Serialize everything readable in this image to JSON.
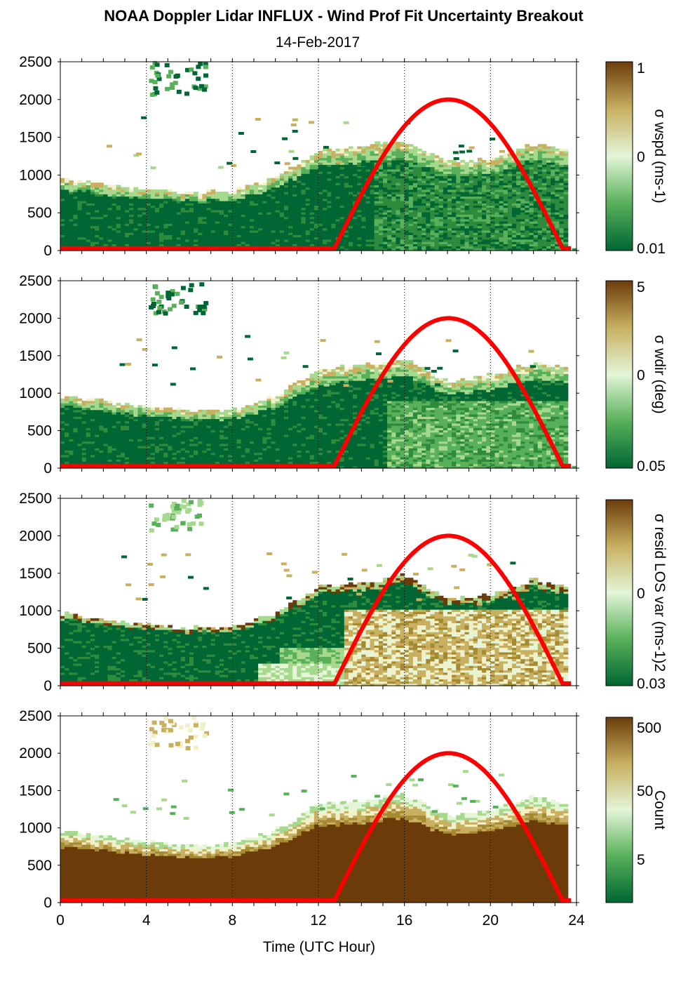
{
  "title": "NOAA Doppler Lidar INFLUX - Wind Prof Fit Uncertainty Breakout",
  "subtitle": "14-Feb-2017",
  "chart_data": [
    {
      "type": "heatmap",
      "panel": "sigma_wspd",
      "xlim": [
        0,
        24
      ],
      "ylim": [
        0,
        2500
      ],
      "x_ticks": [
        "0",
        "4",
        "8",
        "12",
        "16",
        "20",
        "24"
      ],
      "y_ticks": [
        "0",
        "500",
        "1000",
        "1500",
        "2000",
        "2500"
      ],
      "colorbar": {
        "label": "σ wspd (ms-1)",
        "ticks": [
          "1",
          "0",
          "0.01"
        ],
        "scale": "log",
        "range": [
          0.01,
          1
        ]
      },
      "max_height_profile": {
        "x": [
          0,
          2,
          4,
          6,
          8,
          10,
          12,
          14,
          16,
          18,
          20,
          22,
          23.6
        ],
        "y": [
          950,
          880,
          800,
          760,
          770,
          950,
          1300,
          1350,
          1450,
          1150,
          1200,
          1400,
          1300
        ]
      }
    },
    {
      "type": "heatmap",
      "panel": "sigma_wdir",
      "xlim": [
        0,
        24
      ],
      "ylim": [
        0,
        2500
      ],
      "x_ticks": [
        "0",
        "4",
        "8",
        "12",
        "16",
        "20",
        "24"
      ],
      "y_ticks": [
        "0",
        "500",
        "1000",
        "1500",
        "2000",
        "2500"
      ],
      "colorbar": {
        "label": "σ wdir (deg)",
        "ticks": [
          "5",
          "0",
          "0.05"
        ],
        "scale": "log",
        "range": [
          0.05,
          5
        ]
      },
      "max_height_profile": {
        "x": [
          0,
          2,
          4,
          6,
          8,
          10,
          12,
          14,
          16,
          18,
          20,
          22,
          23.6
        ],
        "y": [
          950,
          880,
          800,
          760,
          770,
          950,
          1300,
          1350,
          1450,
          1150,
          1200,
          1400,
          1300
        ]
      }
    },
    {
      "type": "heatmap",
      "panel": "sigma_resid_los_var",
      "xlim": [
        0,
        24
      ],
      "ylim": [
        0,
        2500
      ],
      "x_ticks": [
        "0",
        "4",
        "8",
        "12",
        "16",
        "20",
        "24"
      ],
      "y_ticks": [
        "0",
        "500",
        "1000",
        "1500",
        "2000",
        "2500"
      ],
      "colorbar": {
        "label": "σ resid LOS var (ms-1)2",
        "ticks": [
          "0",
          "0.03"
        ],
        "scale": "log"
      },
      "max_height_profile": {
        "x": [
          0,
          2,
          4,
          6,
          8,
          10,
          12,
          14,
          16,
          18,
          20,
          22,
          23.6
        ],
        "y": [
          950,
          880,
          800,
          760,
          770,
          950,
          1300,
          1350,
          1450,
          1150,
          1200,
          1400,
          1300
        ]
      }
    },
    {
      "type": "heatmap",
      "panel": "count",
      "xlim": [
        0,
        24
      ],
      "ylim": [
        0,
        2500
      ],
      "x_ticks": [
        "0",
        "4",
        "8",
        "12",
        "16",
        "20",
        "24"
      ],
      "y_ticks": [
        "0",
        "500",
        "1000",
        "1500",
        "2000",
        "2500"
      ],
      "xlabel": "Time (UTC Hour)",
      "colorbar": {
        "label": "Count",
        "ticks": [
          "500",
          "50",
          "5"
        ],
        "scale": "log",
        "range": [
          1,
          500
        ]
      },
      "max_height_profile": {
        "x": [
          0,
          2,
          4,
          6,
          8,
          10,
          12,
          14,
          16,
          18,
          20,
          22,
          23.6
        ],
        "y": [
          950,
          880,
          800,
          760,
          770,
          950,
          1300,
          1350,
          1450,
          1150,
          1200,
          1400,
          1300
        ]
      }
    }
  ],
  "overlay_curve": {
    "color": "#ff0000",
    "description_hidden": false,
    "x": [
      0,
      12.7,
      13,
      14,
      15,
      16,
      17,
      18,
      19,
      20,
      21,
      22,
      23,
      23.3,
      23.8
    ],
    "y": [
      30,
      30,
      200,
      800,
      1300,
      1700,
      1930,
      2000,
      1930,
      1700,
      1300,
      800,
      200,
      60,
      30
    ]
  },
  "colors": {
    "dark_green": "#006633",
    "green": "#33a04a",
    "light_green": "#cfeec0",
    "tan": "#c8b060",
    "brown": "#6b3c0a"
  }
}
